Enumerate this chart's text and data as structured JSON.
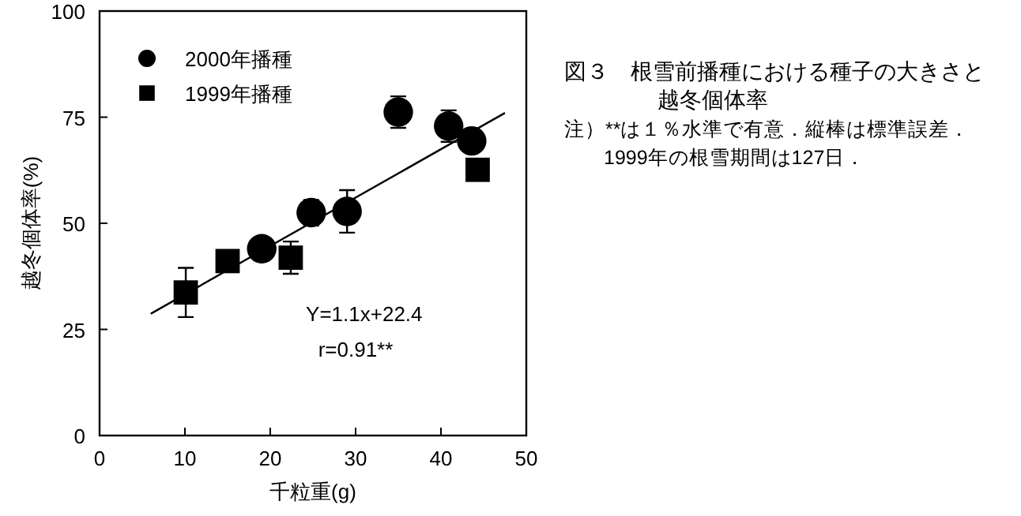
{
  "chart_data": {
    "type": "scatter",
    "title": "図３　根雪前播種における種子の大きさと越冬個体率",
    "xlabel": "千粒重(g)",
    "ylabel": "越冬個体率(%)",
    "xlim": [
      0,
      50
    ],
    "xticks": [
      0,
      10,
      20,
      30,
      40,
      50
    ],
    "ylim": [
      0,
      100
    ],
    "yticks": [
      0,
      25,
      50,
      75,
      100
    ],
    "legend": "top left",
    "grid": false,
    "series": [
      {
        "name": "2000年播種",
        "marker": "circle",
        "color": "#000000",
        "x": [
          19,
          24.8,
          29,
          35,
          40.9,
          43.6
        ],
        "values": [
          44,
          52.5,
          52.8,
          76.2,
          72.9,
          69.4
        ],
        "errors": [
          null,
          3,
          5,
          3.7,
          3.7,
          null
        ]
      },
      {
        "name": "1999年播種",
        "marker": "square",
        "color": "#000000",
        "x": [
          10.1,
          15,
          22.4,
          44.3
        ],
        "values": [
          33.7,
          41.1,
          41.9,
          62.6
        ],
        "errors": [
          5.8,
          null,
          3.8,
          null
        ]
      },
      {
        "type": "line",
        "line_style": "solid",
        "color": "#000000",
        "x": [
          6,
          47.5
        ],
        "values": [
          28.7,
          76
        ]
      }
    ],
    "annotations": [
      "Y=1.1x+22.4",
      "r=0.91**",
      "注）**は１％水準で有意．縦棒は標準誤差．",
      "1999年の根雪期間は127日．"
    ]
  }
}
